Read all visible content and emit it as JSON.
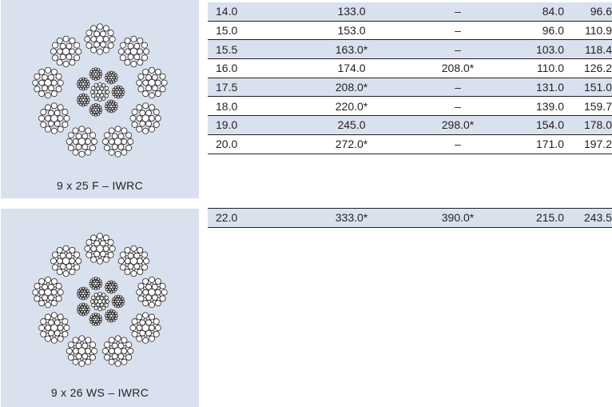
{
  "panels": [
    {
      "label": "9 x 25 F – IWRC"
    },
    {
      "label": "9 x 26 WS – IWRC"
    }
  ],
  "table1": {
    "rows": [
      {
        "c": [
          "14.0",
          "133.0",
          "–",
          "84.0",
          "96.6"
        ],
        "shaded": true
      },
      {
        "c": [
          "15.0",
          "153.0",
          "–",
          "96.0",
          "110.9"
        ],
        "shaded": false
      },
      {
        "c": [
          "15.5",
          "163.0*",
          "–",
          "103.0",
          "118.4"
        ],
        "shaded": true
      },
      {
        "c": [
          "16.0",
          "174.0",
          "208.0*",
          "110.0",
          "126.2"
        ],
        "shaded": false
      },
      {
        "c": [
          "17.5",
          "208.0*",
          "–",
          "131.0",
          "151.0"
        ],
        "shaded": true
      },
      {
        "c": [
          "18.0",
          "220.0*",
          "–",
          "139.0",
          "159.7"
        ],
        "shaded": false
      },
      {
        "c": [
          "19.0",
          "245.0",
          "298.0*",
          "154.0",
          "178.0"
        ],
        "shaded": true
      },
      {
        "c": [
          "20.0",
          "272.0*",
          "–",
          "171.0",
          "197.2"
        ],
        "shaded": false
      }
    ]
  },
  "table2": {
    "rows": [
      {
        "c": [
          "22.0",
          "333.0*",
          "390.0*",
          "215.0",
          "243.5"
        ],
        "shaded": true
      }
    ]
  },
  "colors": {
    "panel_bg": "#d9e1ef",
    "row_shade": "#d9e1ef",
    "text": "#231f20"
  }
}
